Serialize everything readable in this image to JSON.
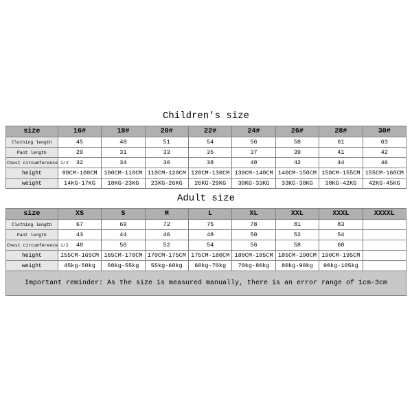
{
  "colors": {
    "header_bg": "#b0b0b0",
    "rowlabel_bg": "#e6e6e6",
    "reminder_bg": "#c8c8c8",
    "border": "#808080",
    "page_bg": "#ffffff",
    "text": "#000000"
  },
  "typography": {
    "font_family": "Courier New, monospace",
    "title_fontsize_pt": 11,
    "header_fontsize_pt": 8,
    "cell_fontsize_pt": 7,
    "small_label_fontsize_pt": 5,
    "reminder_fontsize_pt": 8
  },
  "children": {
    "title": "Children's size",
    "columns": [
      "size",
      "16#",
      "18#",
      "20#",
      "22#",
      "24#",
      "26#",
      "28#",
      "30#"
    ],
    "rows": [
      {
        "label": "Clothing length",
        "small": true,
        "values": [
          "45",
          "48",
          "51",
          "54",
          "56",
          "58",
          "61",
          "63"
        ]
      },
      {
        "label": "Pant length",
        "small": true,
        "values": [
          "29",
          "31",
          "33",
          "35",
          "37",
          "39",
          "41",
          "42"
        ]
      },
      {
        "label": "Chest circumference 1/2",
        "small": true,
        "values": [
          "32",
          "34",
          "36",
          "38",
          "40",
          "42",
          "44",
          "46"
        ]
      },
      {
        "label": "height",
        "small": false,
        "values": [
          "90CM-100CM",
          "100CM-110CM",
          "110CM-120CM",
          "120CM-130CM",
          "130CM-140CM",
          "140CM-150CM",
          "150CM-155CM",
          "155CM-160CM"
        ]
      },
      {
        "label": "weight",
        "small": false,
        "values": [
          "14KG-17KG",
          "18KG-23KG",
          "23KG-26KG",
          "26KG-29KG",
          "30KG-33KG",
          "33KG-38KG",
          "38KG-42KG",
          "42KG-45KG"
        ]
      }
    ]
  },
  "adult": {
    "title": "Adult size",
    "columns": [
      "size",
      "XS",
      "S",
      "M",
      "L",
      "XL",
      "XXL",
      "XXXL",
      "XXXXL"
    ],
    "rows": [
      {
        "label": "Clothing length",
        "small": true,
        "values": [
          "67",
          "69",
          "72",
          "75",
          "78",
          "81",
          "83",
          ""
        ]
      },
      {
        "label": "Pant length",
        "small": true,
        "values": [
          "43",
          "44",
          "46",
          "48",
          "50",
          "52",
          "54",
          ""
        ]
      },
      {
        "label": "Chest circumference 1/2",
        "small": true,
        "values": [
          "48",
          "50",
          "52",
          "54",
          "56",
          "58",
          "60",
          ""
        ]
      },
      {
        "label": "height",
        "small": false,
        "values": [
          "155CM-165CM",
          "165CM-170CM",
          "170CM-175CM",
          "175CM-180CM",
          "180CM-185CM",
          "185CM-190CM",
          "190CM-195CM",
          ""
        ]
      },
      {
        "label": "weight",
        "small": false,
        "values": [
          "45kg-50kg",
          "50kg-55kg",
          "55kg-60kg",
          "60kg-70kg",
          "70kg-80kg",
          "80kg-90kg",
          "90kg-105kg",
          ""
        ]
      }
    ]
  },
  "reminder": "Important reminder: As the size is measured manually, there is an error range of 1cm-3cm"
}
